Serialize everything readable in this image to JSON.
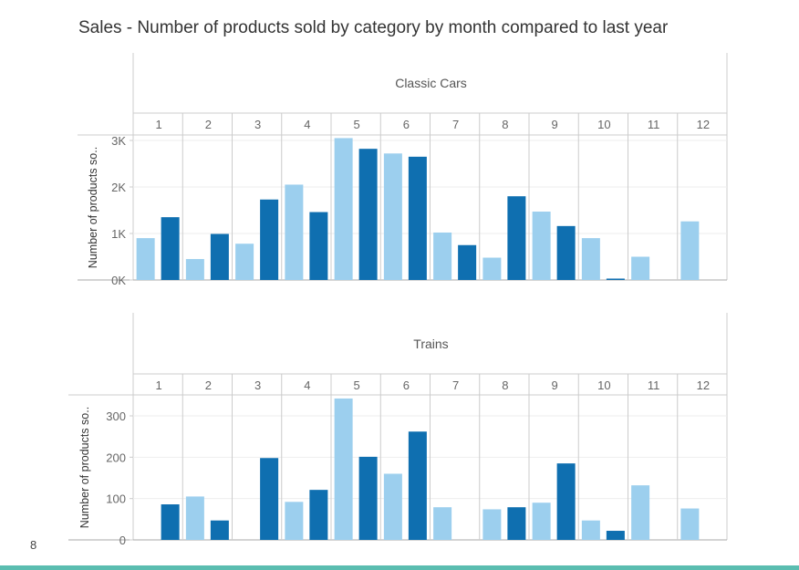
{
  "title": "Sales - Number of products sold by category by month compared to last year",
  "page_number": "8",
  "colors": {
    "prior_year": "#9ccfee",
    "current_year": "#0f6fb0",
    "grid": "#cccccc",
    "accent_bar": "#5bbdb0"
  },
  "chart_data": [
    {
      "type": "bar",
      "title": "Classic Cars",
      "categories": [
        "1",
        "2",
        "3",
        "4",
        "5",
        "6",
        "7",
        "8",
        "9",
        "10",
        "11",
        "12"
      ],
      "ylabel": "Number of products so..",
      "ylim": [
        0,
        3000
      ],
      "yticks": [
        0,
        1000,
        2000,
        3000
      ],
      "ytick_labels": [
        "0K",
        "1K",
        "2K",
        "3K"
      ],
      "series": [
        {
          "color": "#9ccfee",
          "values": [
            900,
            450,
            780,
            2050,
            3050,
            2720,
            1020,
            480,
            1470,
            900,
            500,
            1260
          ]
        },
        {
          "color": "#0f6fb0",
          "values": [
            1350,
            990,
            1730,
            1460,
            2820,
            2650,
            750,
            1800,
            1160,
            30,
            null,
            null
          ]
        }
      ],
      "grid": true
    },
    {
      "type": "bar",
      "title": "Trains",
      "categories": [
        "1",
        "2",
        "3",
        "4",
        "5",
        "6",
        "7",
        "8",
        "9",
        "10",
        "11",
        "12"
      ],
      "ylabel": "Number of products so..",
      "ylim": [
        0,
        300
      ],
      "yticks": [
        0,
        100,
        200,
        300
      ],
      "ytick_labels": [
        "0",
        "100",
        "200",
        "300"
      ],
      "series": [
        {
          "color": "#9ccfee",
          "values": [
            null,
            105,
            null,
            92,
            342,
            160,
            79,
            74,
            90,
            47,
            132,
            76
          ]
        },
        {
          "color": "#0f6fb0",
          "values": [
            86,
            47,
            198,
            121,
            201,
            262,
            null,
            79,
            185,
            22,
            null,
            null
          ]
        }
      ],
      "grid": true
    }
  ]
}
